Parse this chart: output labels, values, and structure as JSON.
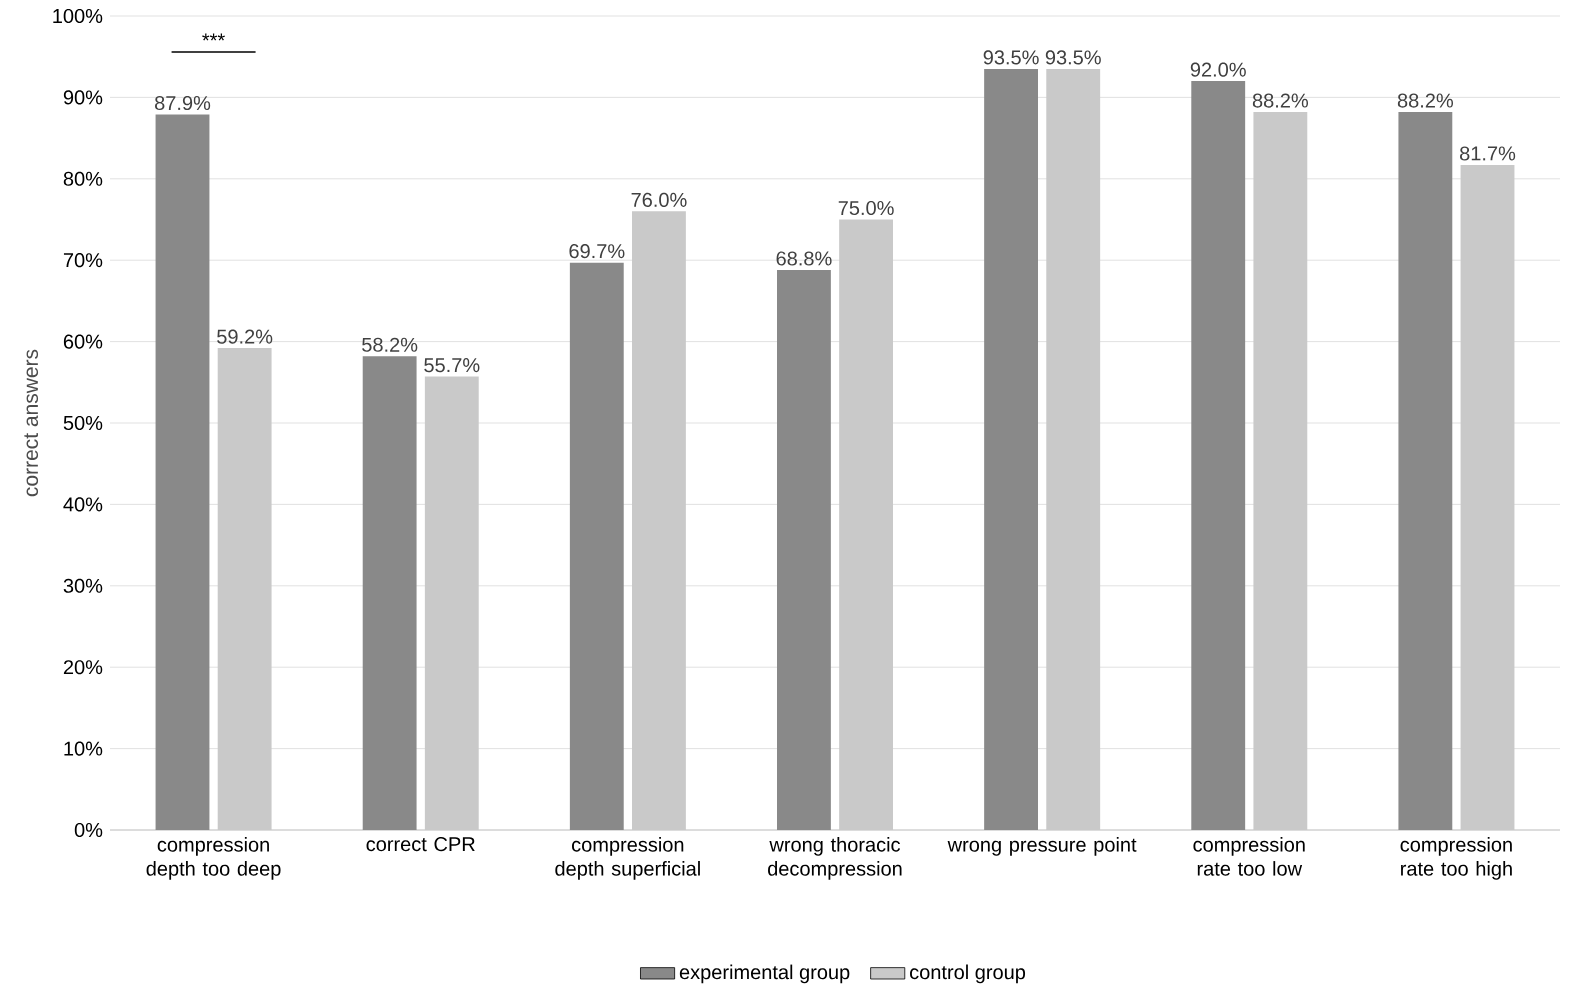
{
  "chart_data": {
    "type": "bar",
    "ylabel": "correct answers",
    "categories": [
      "compression depth too deep",
      "correct CPR",
      "compression depth superficial",
      "wrong thoracic decompression",
      "wrong pressure point",
      "compression rate too low",
      "compression rate too high"
    ],
    "series": [
      {
        "name": "experimental group",
        "color": "#898989",
        "values": [
          87.9,
          58.2,
          69.7,
          68.8,
          93.5,
          92.0,
          88.2
        ],
        "value_labels": [
          "87.9%",
          "58.2%",
          "69.7%",
          "68.8%",
          "93.5%",
          "92.0%",
          "88.2%"
        ]
      },
      {
        "name": "control group",
        "color": "#c9c9c9",
        "values": [
          59.2,
          55.7,
          76.0,
          75.0,
          93.5,
          88.2,
          81.7
        ],
        "value_labels": [
          "59.2%",
          "55.7%",
          "76.0%",
          "75.0%",
          "93.5%",
          "88.2%",
          "81.7%"
        ]
      }
    ],
    "ylim": [
      0,
      100
    ],
    "yticks": [
      {
        "value": 0,
        "label": "0%"
      },
      {
        "value": 10,
        "label": "10%"
      },
      {
        "value": 20,
        "label": "20%"
      },
      {
        "value": 30,
        "label": "30%"
      },
      {
        "value": 40,
        "label": "40%"
      },
      {
        "value": 50,
        "label": "50%"
      },
      {
        "value": 60,
        "label": "60%"
      },
      {
        "value": 70,
        "label": "70%"
      },
      {
        "value": 80,
        "label": "80%"
      },
      {
        "value": 90,
        "label": "90%"
      },
      {
        "value": 100,
        "label": "100%"
      }
    ],
    "grid": "y",
    "legend": "bottom",
    "annotations": [
      "***"
    ]
  }
}
